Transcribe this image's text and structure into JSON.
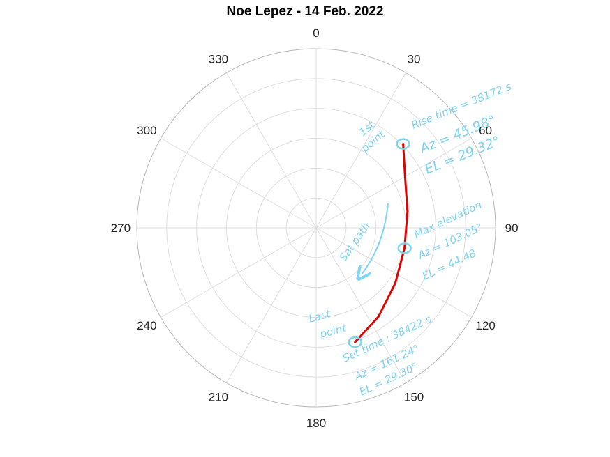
{
  "chart_data": {
    "type": "polar-line",
    "title": "Noe Lepez - 14 Feb. 2022",
    "theta_zero": "top",
    "theta_direction": "clockwise",
    "theta_ticks": [
      0,
      30,
      60,
      90,
      120,
      150,
      180,
      210,
      240,
      270,
      300,
      330
    ],
    "r_range": [
      0,
      90
    ],
    "r_grid": [
      15,
      30,
      45,
      60,
      75,
      90
    ],
    "grid": true,
    "series": [
      {
        "color": "#e00000",
        "theta": [
          45.98,
          60,
          80,
          103.05,
          125,
          145,
          161.24
        ],
        "r": [
          60.68,
          51.5,
          46.5,
          45.52,
          48.5,
          54.5,
          60.7
        ]
      }
    ],
    "markers": [
      {
        "theta": 45.98,
        "r": 60.68
      },
      {
        "theta": 103.05,
        "r": 45.52
      },
      {
        "theta": 161.24,
        "r": 60.7
      }
    ],
    "annotations": {
      "first_point": {
        "line1": "1st",
        "line2": "point"
      },
      "rise": {
        "line1": "Rise time = 38172 s",
        "line2": "Az = 45.98°",
        "line3": "EL = 29.32°"
      },
      "max": {
        "line1": "Max elevation",
        "line2": "Az = 103.05°",
        "line3": "EL = 44.48"
      },
      "set": {
        "line1": "Set time : 38422 s",
        "line2": "Az = 161.24°",
        "line3": "EL = 29.30°"
      },
      "last_point": {
        "line1": "Last",
        "line2": "point"
      },
      "path": {
        "label": "Sat path"
      }
    }
  }
}
